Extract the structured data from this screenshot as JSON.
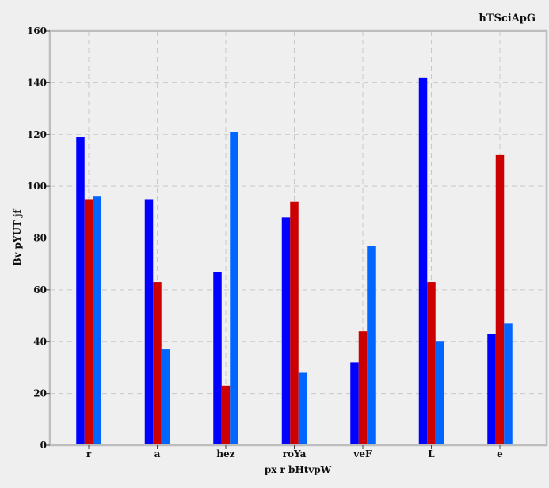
{
  "chart_data": {
    "type": "bar",
    "title": "hTSciApG",
    "xlabel": "px r bHtvpW",
    "ylabel": "Bv pYUT jf",
    "categories": [
      "r",
      "a",
      "hez",
      "roYa",
      "veF",
      "L",
      "e"
    ],
    "series": [
      {
        "color": "#0000ff",
        "values": [
          119,
          95,
          67,
          88,
          32,
          142,
          43
        ]
      },
      {
        "color": "#cc0000",
        "values": [
          95,
          63,
          23,
          94,
          44,
          63,
          112
        ]
      },
      {
        "color": "#0066ff",
        "values": [
          96,
          37,
          121,
          28,
          77,
          40,
          47
        ]
      }
    ],
    "ylim": [
      0,
      160
    ],
    "yticks": [
      0,
      20,
      40,
      60,
      80,
      100,
      120,
      140,
      160
    ],
    "grid": true,
    "legend": "none"
  }
}
